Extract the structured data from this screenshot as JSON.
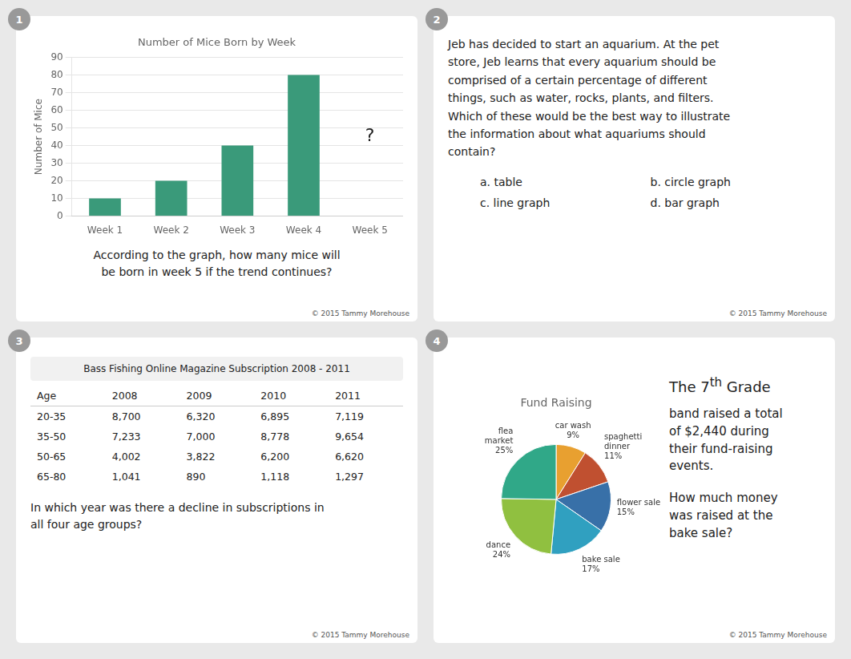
{
  "chart_data": [
    {
      "type": "bar",
      "title": "Number of Mice Born by Week",
      "ylabel": "Number of Mice",
      "categories": [
        "Week 1",
        "Week 2",
        "Week 3",
        "Week 4",
        "Week 5"
      ],
      "values": [
        10,
        20,
        40,
        80,
        null
      ],
      "color": "#3a9a7a",
      "ylim": [
        0,
        90
      ],
      "yticks": [
        0,
        10,
        20,
        30,
        40,
        50,
        60,
        70,
        80,
        90
      ],
      "grid": true,
      "annotations": [
        "1",
        "?",
        "According to the graph, how many mice will\nbe born in week 5 if the trend continues?",
        "© 2015 Tammy Morehouse"
      ]
    },
    {
      "type": "text",
      "annotations": [
        "2",
        "Jeb has decided to start an aquarium. At the pet\nstore, Jeb learns that every aquarium should be\ncomprised of a certain percentage of different\nthings, such as water, rocks, plants, and filters.\nWhich of these would be the best way to illustrate\nthe information about what aquariums should\ncontain?",
        "a. table",
        "b. circle graph",
        "c. line graph",
        "d. bar graph",
        "© 2015 Tammy Morehouse"
      ]
    },
    {
      "type": "table",
      "title": "Bass Fishing Online Magazine Subscription 2008 - 2011",
      "headers": [
        "Age",
        "2008",
        "2009",
        "2010",
        "2011"
      ],
      "rows": [
        [
          "20-35",
          "8,700",
          "6,320",
          "6,895",
          "7,119"
        ],
        [
          "35-50",
          "7,233",
          "7,000",
          "8,778",
          "9,654"
        ],
        [
          "50-65",
          "4,002",
          "3,822",
          "6,200",
          "6,620"
        ],
        [
          "65-80",
          "1,041",
          "890",
          "1,118",
          "1,297"
        ]
      ],
      "annotations": [
        "3",
        "In which year was there a decline in subscriptions in\nall four age groups?",
        "© 2015 Tammy Morehouse"
      ]
    },
    {
      "type": "pie",
      "title": "Fund Raising",
      "categories": [
        "car wash",
        "spaghetti\ndinner",
        "flower sale",
        "bake sale",
        "dance",
        "flea\nmarket"
      ],
      "values": [
        9,
        11,
        15,
        17,
        24,
        25
      ],
      "value_labels": [
        "9%",
        "11%",
        "15%",
        "17%",
        "24%",
        "25%"
      ],
      "data_labels": true,
      "colors": [
        "#e8a030",
        "#c05030",
        "#3870a8",
        "#30a0c0",
        "#90c040",
        "#30a888"
      ],
      "annotations": [
        "4",
        "The 7",
        "th",
        " Grade",
        "band raised a total\nof $2,440 during\ntheir fund-raising\nevents.",
        "How much money\nwas raised at the\nbake sale?",
        "© 2015 Tammy Morehouse"
      ]
    }
  ]
}
